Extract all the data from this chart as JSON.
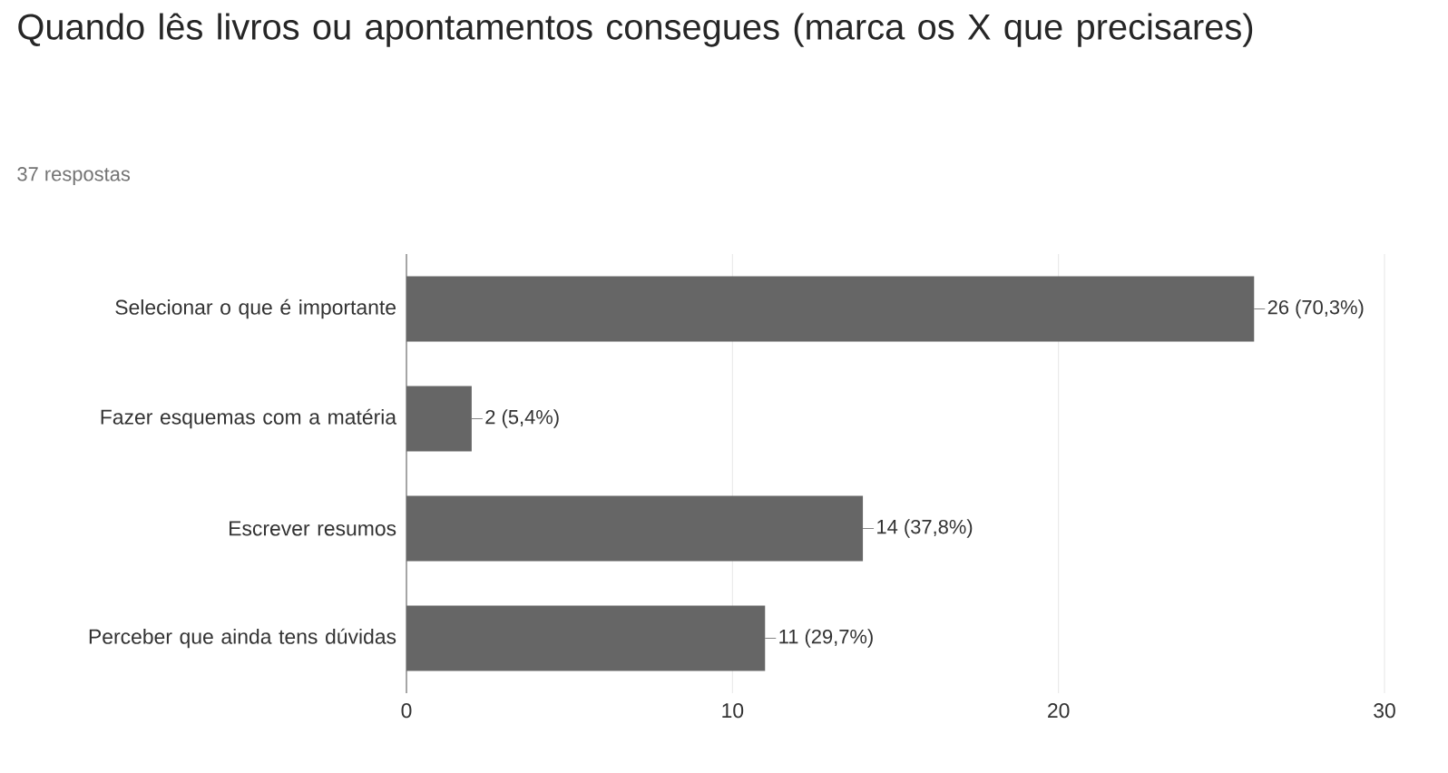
{
  "chart_data": {
    "type": "bar",
    "orientation": "horizontal",
    "title": "Quando lês livros ou apontamentos consegues (marca os X que precisares)",
    "subtitle": "37 respostas",
    "categories": [
      "Selecionar o que é importante",
      "Fazer esquemas com a matéria",
      "Escrever resumos",
      "Perceber que ainda tens dúvidas"
    ],
    "values": [
      26,
      2,
      14,
      11
    ],
    "value_labels": [
      "26 (70,3%)",
      "2 (5,4%)",
      "14 (37,8%)",
      "11 (29,7%)"
    ],
    "color": "#666666",
    "xlim": [
      0,
      30
    ],
    "xticks": [
      0,
      10,
      20,
      30
    ],
    "grid": "x"
  }
}
